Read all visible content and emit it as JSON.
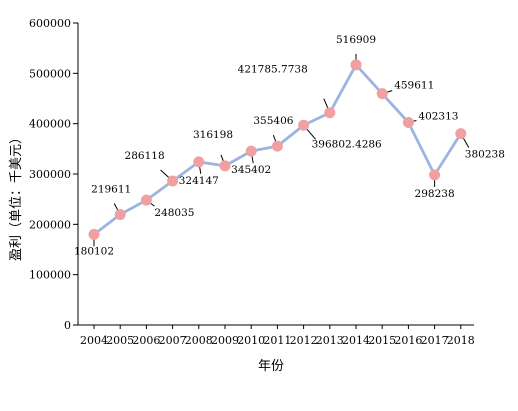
{
  "chart_data": {
    "type": "line",
    "title": "",
    "xlabel": "年份",
    "ylabel": "盈利（单位：千美元）",
    "ylim": [
      0,
      600000
    ],
    "yticks": [
      0,
      100000,
      200000,
      300000,
      400000,
      500000,
      600000
    ],
    "grid": false,
    "categories": [
      "2004",
      "2005",
      "2006",
      "2007",
      "2008",
      "2009",
      "2010",
      "2011",
      "2012",
      "2013",
      "2014",
      "2015",
      "2016",
      "2017",
      "2018"
    ],
    "values": [
      180102,
      219611,
      248035,
      286118,
      324147,
      316198,
      345402,
      355406,
      396802.4286,
      421785.7738,
      516909,
      459611,
      402313,
      298238,
      380238
    ],
    "data_labels": [
      "180102",
      "219611",
      "248035",
      "286118",
      "324147",
      "316198",
      "345402",
      "355406",
      "396802.4286",
      "421785.7738",
      "516909",
      "459611",
      "402313",
      "298238",
      "380238"
    ],
    "line_color": "#9db4e0",
    "marker_color": "#f0a0a0"
  }
}
